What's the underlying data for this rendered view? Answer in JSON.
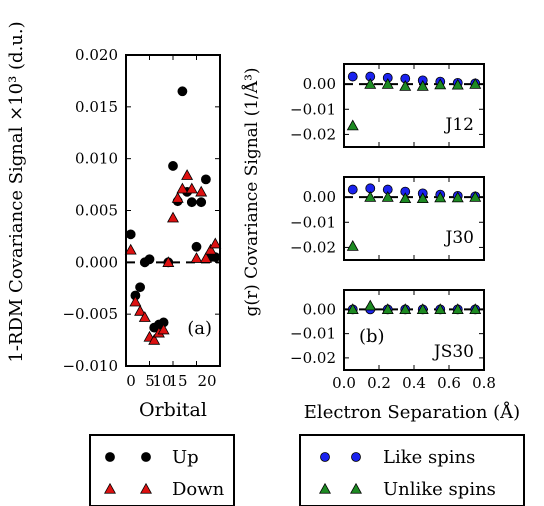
{
  "chart_data": [
    {
      "id": "a",
      "type": "scatter",
      "panel_label": "(a)",
      "xlabel": "Orbital",
      "ylabel": "1-RDM Covariance Signal ×10³ (d.u.)",
      "xlim": [
        0,
        20
      ],
      "ylim": [
        -0.01,
        0.02
      ],
      "xticks": [
        0,
        5,
        10,
        15,
        20
      ],
      "xtick_labels": [
        "0",
        "5",
        "10",
        "15",
        "20"
      ],
      "yticks": [
        -0.01,
        -0.005,
        0.0,
        0.005,
        0.01,
        0.015,
        0.02
      ],
      "ytick_labels": [
        "−0.010",
        "−0.005",
        "0.000",
        "0.005",
        "0.010",
        "0.015",
        "0.020"
      ],
      "series": [
        {
          "name": "Up",
          "marker": "circle",
          "color": "#000000",
          "points": [
            [
              1,
              0.0027
            ],
            [
              2,
              -0.0032
            ],
            [
              3,
              -0.0024
            ],
            [
              4,
              0.0
            ],
            [
              5,
              0.0003
            ],
            [
              6,
              -0.0063
            ],
            [
              7,
              -0.006
            ],
            [
              8,
              -0.0058
            ],
            [
              9,
              0.0
            ],
            [
              10,
              0.0093
            ],
            [
              11,
              0.0059
            ],
            [
              12,
              0.0165
            ],
            [
              13,
              0.0068
            ],
            [
              14,
              0.0058
            ],
            [
              15,
              0.0015
            ],
            [
              16,
              0.0058
            ],
            [
              17,
              0.008
            ],
            [
              18,
              0.0005
            ],
            [
              19,
              0.0005
            ]
          ]
        },
        {
          "name": "Down",
          "marker": "triangle",
          "color": "#dd1111",
          "points": [
            [
              1,
              0.0012
            ],
            [
              2,
              -0.0038
            ],
            [
              3,
              -0.0047
            ],
            [
              4,
              -0.0053
            ],
            [
              5,
              -0.0072
            ],
            [
              6,
              -0.0075
            ],
            [
              7,
              -0.0068
            ],
            [
              8,
              -0.0065
            ],
            [
              9,
              0.0
            ],
            [
              10,
              0.0043
            ],
            [
              11,
              0.0062
            ],
            [
              12,
              0.0071
            ],
            [
              13,
              0.0084
            ],
            [
              14,
              0.0071
            ],
            [
              15,
              0.0004
            ],
            [
              16,
              0.0068
            ],
            [
              17,
              0.0004
            ],
            [
              18,
              0.0012
            ],
            [
              19,
              0.0018
            ]
          ]
        }
      ]
    },
    {
      "id": "b",
      "type": "scatter",
      "panel_label": "(b)",
      "xlabel": "Electron Separation (Å)",
      "ylabel": "g(r) Covariance Signal (1/Å³)",
      "xlim": [
        0.0,
        0.8
      ],
      "xticks": [
        0.0,
        0.2,
        0.4,
        0.6,
        0.8
      ],
      "xtick_labels": [
        "0.0",
        "0.2",
        "0.4",
        "0.6",
        "0.8"
      ],
      "subplots": [
        {
          "name": "J12",
          "ylim": [
            -0.025,
            0.008
          ],
          "yticks": [
            0.0,
            -0.01,
            -0.02
          ],
          "ytick_labels": [
            "0.00",
            "−0.01",
            "−0.02"
          ],
          "series": [
            {
              "name": "Like spins",
              "marker": "circle",
              "color": "#1a22ee",
              "x": [
                0.05,
                0.15,
                0.25,
                0.35,
                0.45,
                0.55,
                0.65,
                0.75
              ],
              "y": [
                0.003,
                0.003,
                0.0025,
                0.0022,
                0.0015,
                0.001,
                0.0005,
                0.0003
              ]
            },
            {
              "name": "Unlike spins",
              "marker": "triangle",
              "color": "#1d8a22",
              "x": [
                0.05,
                0.15,
                0.25,
                0.35,
                0.45,
                0.55,
                0.65,
                0.75
              ],
              "y": [
                -0.0165,
                0.0,
                0.0,
                -0.0008,
                -0.0008,
                -0.0002,
                -0.0003,
                0.0
              ]
            }
          ]
        },
        {
          "name": "J30",
          "ylim": [
            -0.025,
            0.008
          ],
          "yticks": [
            0.0,
            -0.01,
            -0.02
          ],
          "ytick_labels": [
            "0.00",
            "−0.01",
            "−0.02"
          ],
          "series": [
            {
              "name": "Like spins",
              "marker": "circle",
              "color": "#1a22ee",
              "x": [
                0.05,
                0.15,
                0.25,
                0.35,
                0.45,
                0.55,
                0.65,
                0.75
              ],
              "y": [
                0.003,
                0.0035,
                0.003,
                0.0022,
                0.0015,
                0.001,
                0.0005,
                0.0003
              ]
            },
            {
              "name": "Unlike spins",
              "marker": "triangle",
              "color": "#1d8a22",
              "x": [
                0.05,
                0.15,
                0.25,
                0.35,
                0.45,
                0.55,
                0.65,
                0.75
              ],
              "y": [
                -0.0195,
                0.0,
                0.0,
                -0.0005,
                -0.0005,
                -0.0002,
                -0.0002,
                0.0
              ]
            }
          ]
        },
        {
          "name": "JS30",
          "ylim": [
            -0.025,
            0.008
          ],
          "yticks": [
            0.0,
            -0.01,
            -0.02
          ],
          "ytick_labels": [
            "0.00",
            "−0.01",
            "−0.02"
          ],
          "series": [
            {
              "name": "Like spins",
              "marker": "circle",
              "color": "#1a22ee",
              "x": [
                0.05,
                0.15,
                0.25,
                0.35,
                0.45,
                0.55,
                0.65,
                0.75
              ],
              "y": [
                0.0,
                0.0,
                0.0,
                0.0,
                0.0,
                0.0,
                0.0,
                0.0
              ]
            },
            {
              "name": "Unlike spins",
              "marker": "triangle",
              "color": "#1d8a22",
              "x": [
                0.05,
                0.15,
                0.25,
                0.35,
                0.45,
                0.55,
                0.65,
                0.75
              ],
              "y": [
                0.0,
                0.0015,
                0.0,
                0.0,
                0.0,
                0.0,
                0.0,
                0.0
              ]
            }
          ]
        }
      ]
    }
  ],
  "legends": [
    {
      "items": [
        {
          "label": "Up",
          "marker": "circle",
          "color": "#000000"
        },
        {
          "label": "Down",
          "marker": "triangle",
          "color": "#dd1111"
        }
      ]
    },
    {
      "items": [
        {
          "label": "Like spins",
          "marker": "circle",
          "color": "#1a22ee"
        },
        {
          "label": "Unlike spins",
          "marker": "triangle",
          "color": "#1d8a22"
        }
      ]
    }
  ]
}
